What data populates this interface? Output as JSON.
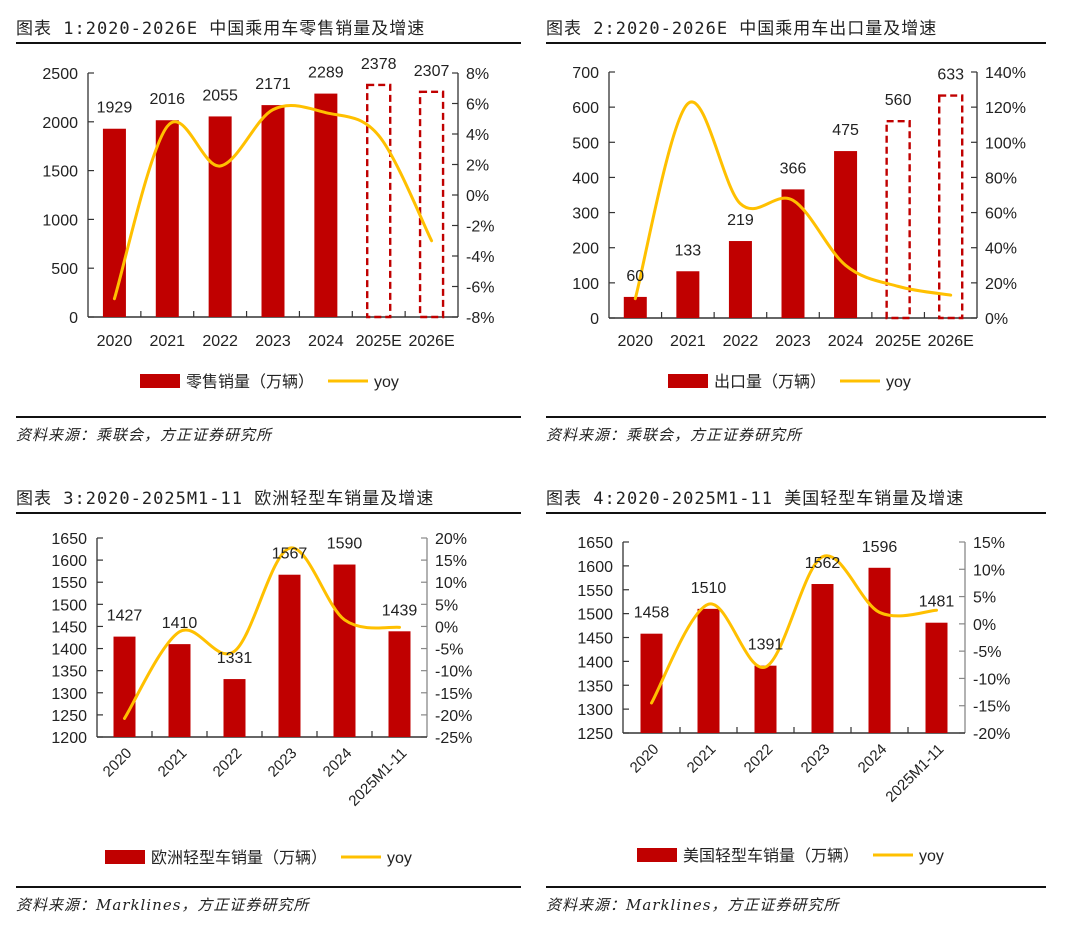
{
  "colors": {
    "bar": "#C00000",
    "line": "#FFC000",
    "axis": "#333333"
  },
  "chart_data": [
    {
      "id": "fig1",
      "type": "bar",
      "title": "图表 1:2020-2026E 中国乘用车零售销量及增速",
      "categories": [
        "2020",
        "2021",
        "2022",
        "2023",
        "2024",
        "2025E",
        "2026E"
      ],
      "series": [
        {
          "name": "零售销量（万辆）",
          "kind": "bar",
          "axis": "left",
          "values": [
            1929,
            2016,
            2055,
            2171,
            2289,
            2378,
            2307
          ],
          "estimated": [
            false,
            false,
            false,
            false,
            false,
            true,
            true
          ]
        },
        {
          "name": "yoy",
          "kind": "line",
          "axis": "right",
          "values": [
            -6.8,
            4.5,
            1.9,
            5.6,
            5.4,
            3.9,
            -3.0
          ]
        }
      ],
      "data_labels": [
        "1929",
        "2016",
        "2055",
        "2171",
        "2289",
        "2378",
        "2307"
      ],
      "ylim": [
        0,
        2500
      ],
      "yticks": [
        0,
        500,
        1000,
        1500,
        2000,
        2500
      ],
      "ytick_labels": [
        "0",
        "500",
        "1000",
        "1500",
        "2000",
        "2500"
      ],
      "y2lim": [
        -8,
        8
      ],
      "y2ticks": [
        -8,
        -6,
        -4,
        -2,
        0,
        2,
        4,
        6,
        8
      ],
      "y2tick_labels": [
        "-8%",
        "-6%",
        "-4%",
        "-2%",
        "0%",
        "2%",
        "4%",
        "6%",
        "8%"
      ],
      "xlabel": "",
      "ylabel": "",
      "legend": [
        "零售销量（万辆）",
        "yoy"
      ],
      "legend_position": "bottom",
      "grid": false,
      "rotated_xticks": false,
      "source": "资料来源：乘联会，方正证券研究所"
    },
    {
      "id": "fig2",
      "type": "bar",
      "title": "图表 2:2020-2026E 中国乘用车出口量及增速",
      "categories": [
        "2020",
        "2021",
        "2022",
        "2023",
        "2024",
        "2025E",
        "2026E"
      ],
      "series": [
        {
          "name": "出口量（万辆）",
          "kind": "bar",
          "axis": "left",
          "values": [
            60,
            133,
            219,
            366,
            475,
            560,
            633
          ],
          "estimated": [
            false,
            false,
            false,
            false,
            false,
            true,
            true
          ]
        },
        {
          "name": "yoy",
          "kind": "line",
          "axis": "right",
          "values": [
            11,
            122,
            65,
            67,
            30,
            18,
            13
          ]
        }
      ],
      "data_labels": [
        "60",
        "133",
        "219",
        "366",
        "475",
        "560",
        "633"
      ],
      "ylim": [
        0,
        700
      ],
      "yticks": [
        0,
        100,
        200,
        300,
        400,
        500,
        600,
        700
      ],
      "ytick_labels": [
        "0",
        "100",
        "200",
        "300",
        "400",
        "500",
        "600",
        "700"
      ],
      "y2lim": [
        0,
        140
      ],
      "y2ticks": [
        0,
        20,
        40,
        60,
        80,
        100,
        120,
        140
      ],
      "y2tick_labels": [
        "0%",
        "20%",
        "40%",
        "60%",
        "80%",
        "100%",
        "120%",
        "140%"
      ],
      "xlabel": "",
      "ylabel": "",
      "legend": [
        "出口量（万辆）",
        "yoy"
      ],
      "legend_position": "bottom",
      "grid": false,
      "rotated_xticks": false,
      "source": "资料来源：乘联会，方正证券研究所"
    },
    {
      "id": "fig3",
      "type": "bar",
      "title": "图表 3:2020-2025M1-11 欧洲轻型车销量及增速",
      "categories": [
        "2020",
        "2021",
        "2022",
        "2023",
        "2024",
        "2025M1-11"
      ],
      "series": [
        {
          "name": "欧洲轻型车销量（万辆）",
          "kind": "bar",
          "axis": "left",
          "values": [
            1427,
            1410,
            1331,
            1567,
            1590,
            1439
          ],
          "estimated": [
            false,
            false,
            false,
            false,
            false,
            false
          ]
        },
        {
          "name": "yoy",
          "kind": "line",
          "axis": "right",
          "values": [
            -20.8,
            -1.2,
            -5.6,
            17.7,
            1.5,
            -0.2
          ]
        }
      ],
      "data_labels": [
        "1427",
        "1410",
        "1331",
        "1567",
        "1590",
        "1439"
      ],
      "ylim": [
        1200,
        1650
      ],
      "yticks": [
        1200,
        1250,
        1300,
        1350,
        1400,
        1450,
        1500,
        1550,
        1600,
        1650
      ],
      "ytick_labels": [
        "1200",
        "1250",
        "1300",
        "1350",
        "1400",
        "1450",
        "1500",
        "1550",
        "1600",
        "1650"
      ],
      "y2lim": [
        -25,
        20
      ],
      "y2ticks": [
        -25,
        -20,
        -15,
        -10,
        -5,
        0,
        5,
        10,
        15,
        20
      ],
      "y2tick_labels": [
        "-25%",
        "-20%",
        "-15%",
        "-10%",
        "-5%",
        "0%",
        "5%",
        "10%",
        "15%",
        "20%"
      ],
      "xlabel": "",
      "ylabel": "",
      "legend": [
        "欧洲轻型车销量（万辆）",
        "yoy"
      ],
      "legend_position": "bottom",
      "grid": false,
      "rotated_xticks": true,
      "source": "资料来源：Marklines，方正证券研究所"
    },
    {
      "id": "fig4",
      "type": "bar",
      "title": "图表 4:2020-2025M1-11 美国轻型车销量及增速",
      "categories": [
        "2020",
        "2021",
        "2022",
        "2023",
        "2024",
        "2025M1-11"
      ],
      "series": [
        {
          "name": "美国轻型车销量（万辆）",
          "kind": "bar",
          "axis": "left",
          "values": [
            1458,
            1510,
            1391,
            1562,
            1596,
            1481
          ],
          "estimated": [
            false,
            false,
            false,
            false,
            false,
            false
          ]
        },
        {
          "name": "yoy",
          "kind": "line",
          "axis": "right",
          "values": [
            -14.5,
            3.6,
            -7.9,
            12.3,
            2.1,
            2.5
          ]
        }
      ],
      "data_labels": [
        "1458",
        "1510",
        "1391",
        "1562",
        "1596",
        "1481"
      ],
      "ylim": [
        1250,
        1650
      ],
      "yticks": [
        1250,
        1300,
        1350,
        1400,
        1450,
        1500,
        1550,
        1600,
        1650
      ],
      "ytick_labels": [
        "1250",
        "1300",
        "1350",
        "1400",
        "1450",
        "1500",
        "1550",
        "1600",
        "1650"
      ],
      "y2lim": [
        -20,
        15
      ],
      "y2ticks": [
        -20,
        -15,
        -10,
        -5,
        0,
        5,
        10,
        15
      ],
      "y2tick_labels": [
        "-20%",
        "-15%",
        "-10%",
        "-5%",
        "0%",
        "5%",
        "10%",
        "15%"
      ],
      "xlabel": "",
      "ylabel": "",
      "legend": [
        "美国轻型车销量（万辆）",
        "yoy"
      ],
      "legend_position": "bottom",
      "grid": false,
      "rotated_xticks": true,
      "source": "资料来源：Marklines，方正证券研究所"
    }
  ]
}
